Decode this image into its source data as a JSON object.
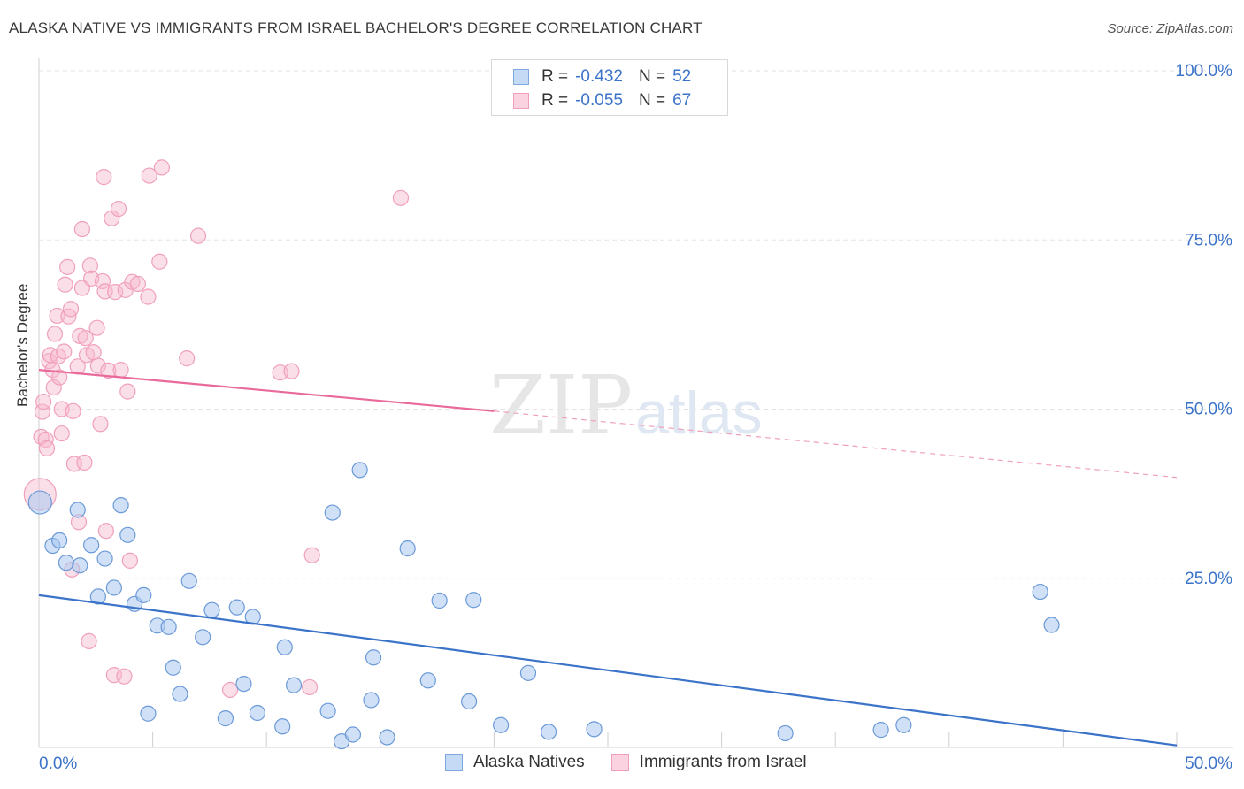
{
  "header": {
    "title": "ALASKA NATIVE VS IMMIGRANTS FROM ISRAEL BACHELOR'S DEGREE CORRELATION CHART",
    "source": "Source: ZipAtlas.com"
  },
  "watermark": {
    "zip": "ZIP",
    "atlas": "atlas"
  },
  "legend": {
    "rows": [
      {
        "r_label": "R =",
        "r_value": "-0.432",
        "n_label": "N =",
        "n_value": "52",
        "color": "#a9c8f0"
      },
      {
        "r_label": "R =",
        "r_value": "-0.055",
        "n_label": "N =",
        "n_value": "67",
        "color": "#f6b8cb"
      }
    ]
  },
  "bottom_legend": {
    "items": [
      {
        "label": "Alaska Natives",
        "color": "#a9c8f0"
      },
      {
        "label": "Immigrants from Israel",
        "color": "#f6b8cb"
      }
    ]
  },
  "chart_data": {
    "type": "scatter",
    "title": "ALASKA NATIVE VS IMMIGRANTS FROM ISRAEL BACHELOR'S DEGREE CORRELATION CHART",
    "xlabel": "",
    "ylabel": "Bachelor's Degree",
    "xlim": [
      0,
      50
    ],
    "ylim": [
      0,
      100
    ],
    "x_tick_labels": [
      "0.0%",
      "50.0%"
    ],
    "y_tick_labels": [
      "100.0%",
      "75.0%",
      "50.0%",
      "25.0%"
    ],
    "y_ticks": [
      100,
      75,
      50,
      25
    ],
    "grid": true,
    "legend_position": "top-center",
    "colors": {
      "blue": "#3b73c9",
      "blue_fill": "#a9c8f0",
      "pink": "#e8699a",
      "pink_fill": "#f6b8cb"
    },
    "series": [
      {
        "name": "Alaska Natives",
        "color": "#3b73c9",
        "points": [
          [
            0.05,
            36.2
          ],
          [
            0.6,
            29.8
          ],
          [
            0.9,
            30.6
          ],
          [
            1.2,
            27.3
          ],
          [
            1.7,
            35.1
          ],
          [
            1.8,
            26.9
          ],
          [
            2.3,
            29.9
          ],
          [
            2.6,
            22.3
          ],
          [
            2.9,
            27.9
          ],
          [
            3.3,
            23.6
          ],
          [
            3.6,
            35.8
          ],
          [
            3.9,
            31.4
          ],
          [
            4.2,
            21.2
          ],
          [
            4.6,
            22.5
          ],
          [
            4.8,
            5.0
          ],
          [
            5.2,
            18.0
          ],
          [
            5.7,
            17.8
          ],
          [
            5.9,
            11.8
          ],
          [
            6.2,
            7.9
          ],
          [
            6.6,
            24.6
          ],
          [
            7.2,
            16.3
          ],
          [
            7.6,
            20.3
          ],
          [
            8.2,
            4.3
          ],
          [
            8.7,
            20.7
          ],
          [
            9.0,
            9.4
          ],
          [
            9.4,
            19.3
          ],
          [
            9.6,
            5.1
          ],
          [
            10.7,
            3.1
          ],
          [
            10.8,
            14.8
          ],
          [
            11.2,
            9.2
          ],
          [
            12.7,
            5.4
          ],
          [
            12.9,
            34.7
          ],
          [
            13.3,
            0.9
          ],
          [
            13.8,
            1.9
          ],
          [
            14.1,
            41.0
          ],
          [
            14.6,
            7.0
          ],
          [
            14.7,
            13.3
          ],
          [
            15.3,
            1.5
          ],
          [
            16.2,
            29.4
          ],
          [
            17.1,
            9.9
          ],
          [
            17.6,
            21.7
          ],
          [
            18.9,
            6.8
          ],
          [
            19.1,
            21.8
          ],
          [
            20.3,
            3.3
          ],
          [
            21.5,
            11.0
          ],
          [
            22.4,
            2.3
          ],
          [
            24.4,
            2.7
          ],
          [
            32.8,
            2.1
          ],
          [
            37.0,
            2.6
          ],
          [
            38.0,
            3.3
          ],
          [
            44.0,
            23.0
          ],
          [
            44.5,
            18.1
          ]
        ],
        "trend": {
          "x": [
            0,
            50
          ],
          "y": [
            22.5,
            0.3
          ]
        }
      },
      {
        "name": "Immigrants from Israel",
        "color": "#e8699a",
        "points": [
          [
            0.05,
            37.4
          ],
          [
            0.1,
            45.9
          ],
          [
            0.15,
            49.6
          ],
          [
            0.2,
            51.1
          ],
          [
            0.3,
            45.5
          ],
          [
            0.35,
            44.2
          ],
          [
            0.45,
            57.1
          ],
          [
            0.5,
            58.0
          ],
          [
            0.6,
            55.8
          ],
          [
            0.65,
            53.2
          ],
          [
            0.7,
            61.1
          ],
          [
            0.8,
            63.8
          ],
          [
            0.85,
            57.8
          ],
          [
            0.9,
            54.7
          ],
          [
            1.0,
            50.0
          ],
          [
            1.0,
            46.4
          ],
          [
            1.1,
            58.5
          ],
          [
            1.15,
            68.4
          ],
          [
            1.25,
            71.0
          ],
          [
            1.3,
            63.7
          ],
          [
            1.4,
            64.8
          ],
          [
            1.45,
            26.3
          ],
          [
            1.5,
            49.7
          ],
          [
            1.55,
            41.9
          ],
          [
            1.7,
            56.3
          ],
          [
            1.75,
            33.3
          ],
          [
            1.8,
            60.8
          ],
          [
            1.9,
            76.6
          ],
          [
            1.9,
            67.9
          ],
          [
            2.0,
            42.1
          ],
          [
            2.05,
            60.5
          ],
          [
            2.1,
            58.0
          ],
          [
            2.2,
            15.7
          ],
          [
            2.25,
            71.2
          ],
          [
            2.3,
            69.3
          ],
          [
            2.4,
            58.4
          ],
          [
            2.55,
            62.0
          ],
          [
            2.6,
            56.4
          ],
          [
            2.7,
            47.8
          ],
          [
            2.8,
            68.9
          ],
          [
            2.85,
            84.3
          ],
          [
            2.9,
            67.4
          ],
          [
            2.95,
            32.0
          ],
          [
            3.05,
            55.7
          ],
          [
            3.2,
            78.2
          ],
          [
            3.3,
            10.7
          ],
          [
            3.35,
            67.3
          ],
          [
            3.5,
            79.6
          ],
          [
            3.6,
            55.8
          ],
          [
            3.75,
            10.5
          ],
          [
            3.8,
            67.6
          ],
          [
            3.9,
            52.6
          ],
          [
            4.0,
            27.6
          ],
          [
            4.1,
            68.8
          ],
          [
            4.35,
            68.5
          ],
          [
            4.8,
            66.6
          ],
          [
            4.85,
            84.5
          ],
          [
            5.3,
            71.8
          ],
          [
            5.4,
            85.7
          ],
          [
            6.5,
            57.5
          ],
          [
            7.0,
            75.6
          ],
          [
            8.4,
            8.5
          ],
          [
            10.6,
            55.4
          ],
          [
            11.1,
            55.6
          ],
          [
            11.9,
            8.9
          ],
          [
            12.0,
            28.4
          ],
          [
            15.9,
            81.2
          ]
        ],
        "trend": {
          "x": [
            0,
            20
          ],
          "y": [
            55.8,
            49.7
          ]
        },
        "trend_extension": {
          "x": [
            20,
            50
          ],
          "y": [
            49.7,
            39.9
          ]
        }
      }
    ]
  }
}
